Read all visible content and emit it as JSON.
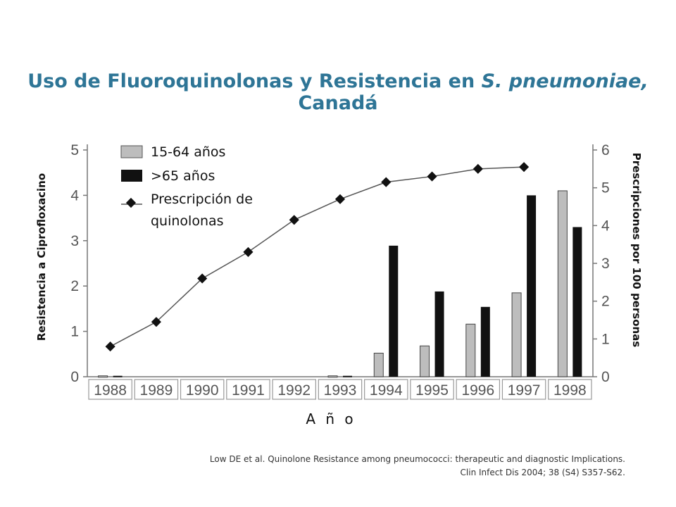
{
  "title": {
    "main": "Uso de Fluoroquinolonas y Resistencia en ",
    "italic": "S. pneumoniae,",
    "end": " Canadá"
  },
  "citation": {
    "line1": "Low DE et al.  Quinolone Resistance among pneumococci: therapeutic and diagnostic Implications.",
    "line2": "Clin Infect Dis 2004; 38 (S4) S357-S62."
  },
  "chart_data": {
    "type": "bar",
    "categories": [
      "1988",
      "1989",
      "1990",
      "1991",
      "1992",
      "1993",
      "1994",
      "1995",
      "1996",
      "1997",
      "1998"
    ],
    "series": [
      {
        "name": "15-64 años",
        "axis": "left",
        "color": "#bdbdbd",
        "values": [
          0.02,
          0,
          0,
          0,
          0,
          0.02,
          0.52,
          0.68,
          1.16,
          1.85,
          4.1
        ]
      },
      {
        "name": ">65 años",
        "axis": "left",
        "color": "#111111",
        "values": [
          0.02,
          0,
          0,
          0,
          0,
          0.02,
          2.89,
          1.88,
          1.54,
          4.0,
          3.3
        ]
      },
      {
        "name": "Prescripción de quinolonas",
        "axis": "right",
        "kind": "line",
        "values": [
          0.8,
          1.45,
          2.6,
          3.3,
          4.15,
          4.7,
          5.15,
          5.3,
          5.5,
          5.55,
          null
        ]
      }
    ],
    "ylabel": "Resistencia a Ciprofloxacino",
    "y2label": "Prescripciones por 100 personas",
    "xlabel": "A ñ o",
    "ylim": [
      0,
      5
    ],
    "y2lim": [
      0,
      6
    ],
    "yticks": [
      "0",
      "1",
      "2",
      "3",
      "4",
      "5"
    ],
    "y2ticks": [
      "0",
      "1",
      "2",
      "3",
      "4",
      "5",
      "6"
    ],
    "legend": {
      "position": "top-left",
      "items": [
        "15-64 años",
        ">65 años",
        "Prescripción de",
        "quinolonas"
      ]
    },
    "grid": false
  }
}
